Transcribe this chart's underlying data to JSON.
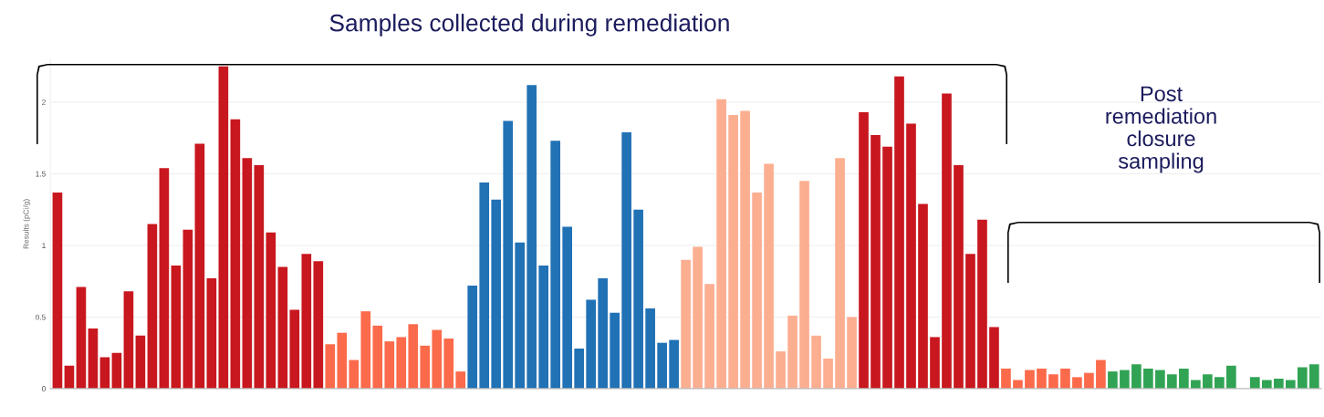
{
  "chart_data": {
    "type": "bar",
    "title": "Samples collected during remediation",
    "annotations": [
      "Post\nremediation\nclosure\nsampling"
    ],
    "ylabel": "Results (pCi/g)",
    "categories": [
      null,
      null,
      null,
      null,
      null,
      null,
      null,
      null,
      null,
      null,
      null,
      null,
      null,
      null,
      null,
      null,
      null,
      null,
      null,
      null,
      null,
      null,
      null,
      null,
      null,
      null,
      null,
      null,
      null,
      null,
      null,
      null,
      null,
      null,
      null,
      null,
      null,
      null,
      null,
      null,
      null,
      null,
      null,
      null,
      null,
      null,
      null,
      null,
      null,
      null,
      null,
      null,
      null,
      null,
      null,
      null,
      null,
      null,
      null,
      null,
      null,
      null,
      null,
      null,
      null,
      null,
      null,
      null,
      null,
      null,
      null,
      null,
      null,
      null,
      null,
      null,
      null,
      null,
      null,
      null,
      null,
      null,
      null,
      null,
      null,
      null,
      null,
      null,
      null,
      null,
      null,
      null,
      null,
      null,
      null,
      null,
      null,
      null,
      null,
      null,
      null,
      null,
      null,
      null,
      null,
      null,
      null
    ],
    "values": [
      1.37,
      0.16,
      0.71,
      0.42,
      0.22,
      0.25,
      0.68,
      0.37,
      1.15,
      1.54,
      0.86,
      1.11,
      1.71,
      0.77,
      2.25,
      1.88,
      1.61,
      1.56,
      1.09,
      0.85,
      0.55,
      0.94,
      0.89,
      0.31,
      0.39,
      0.2,
      0.54,
      0.44,
      0.33,
      0.36,
      0.45,
      0.3,
      0.41,
      0.35,
      0.12,
      0.72,
      1.44,
      1.32,
      1.87,
      1.02,
      2.12,
      0.86,
      1.73,
      1.13,
      0.28,
      0.62,
      0.77,
      0.53,
      1.79,
      1.25,
      0.56,
      0.32,
      0.34,
      0.9,
      0.99,
      0.73,
      2.02,
      1.91,
      1.94,
      1.37,
      1.57,
      0.26,
      0.51,
      1.45,
      0.37,
      0.21,
      1.61,
      0.5,
      1.93,
      1.77,
      1.69,
      2.18,
      1.85,
      1.29,
      0.36,
      2.06,
      1.56,
      0.94,
      1.18,
      0.43,
      0.14,
      0.06,
      0.13,
      0.14,
      0.1,
      0.14,
      0.08,
      0.11,
      0.2,
      0.12,
      0.13,
      0.17,
      0.14,
      0.13,
      0.1,
      0.14,
      0.06,
      0.1,
      0.08,
      0.16,
      null,
      0.08,
      0.06,
      0.07,
      0.06,
      0.15,
      0.17
    ],
    "colors": [
      "#c8171e",
      "#c8171e",
      "#c8171e",
      "#c8171e",
      "#c8171e",
      "#c8171e",
      "#c8171e",
      "#c8171e",
      "#c8171e",
      "#c8171e",
      "#c8171e",
      "#c8171e",
      "#c8171e",
      "#c8171e",
      "#c8171e",
      "#c8171e",
      "#c8171e",
      "#c8171e",
      "#c8171e",
      "#c8171e",
      "#c8171e",
      "#c8171e",
      "#c8171e",
      "#fb6a4a",
      "#fb6a4a",
      "#fb6a4a",
      "#fb6a4a",
      "#fb6a4a",
      "#fb6a4a",
      "#fb6a4a",
      "#fb6a4a",
      "#fb6a4a",
      "#fb6a4a",
      "#fb6a4a",
      "#fb6a4a",
      "#2171b5",
      "#2171b5",
      "#2171b5",
      "#2171b5",
      "#2171b5",
      "#2171b5",
      "#2171b5",
      "#2171b5",
      "#2171b5",
      "#2171b5",
      "#2171b5",
      "#2171b5",
      "#2171b5",
      "#2171b5",
      "#2171b5",
      "#2171b5",
      "#2171b5",
      "#2171b5",
      "#fcae91",
      "#fcae91",
      "#fcae91",
      "#fcae91",
      "#fcae91",
      "#fcae91",
      "#fcae91",
      "#fcae91",
      "#fcae91",
      "#fcae91",
      "#fcae91",
      "#fcae91",
      "#fcae91",
      "#fcae91",
      "#fcae91",
      "#c8171e",
      "#c8171e",
      "#c8171e",
      "#c8171e",
      "#c8171e",
      "#c8171e",
      "#c8171e",
      "#c8171e",
      "#c8171e",
      "#c8171e",
      "#c8171e",
      "#c8171e",
      "#fb6a4a",
      "#fb6a4a",
      "#fb6a4a",
      "#fb6a4a",
      "#fb6a4a",
      "#fb6a4a",
      "#fb6a4a",
      "#fb6a4a",
      "#fb6a4a",
      "#31a354",
      "#31a354",
      "#31a354",
      "#31a354",
      "#31a354",
      "#31a354",
      "#31a354",
      "#31a354",
      "#31a354",
      "#31a354",
      "#31a354",
      "#31a354",
      "#31a354",
      "#31a354",
      "#31a354",
      "#31a354",
      "#31a354",
      "#31a354"
    ],
    "ylim": [
      0,
      2.3
    ],
    "yticks": [
      0,
      0.5,
      1,
      1.5,
      2
    ],
    "grid": "y",
    "legend": false
  }
}
